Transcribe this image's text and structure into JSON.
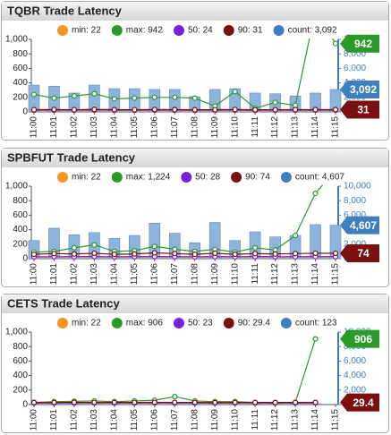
{
  "chart_data": [
    {
      "type": "combo",
      "title": "TQBR Trade Latency",
      "categories": [
        "11:00",
        "11:01",
        "11:02",
        "11:03",
        "11:04",
        "11:05",
        "11:06",
        "11:07",
        "11:08",
        "11:09",
        "11:10",
        "11:11",
        "11:12",
        "11:13",
        "11:14",
        "11:15"
      ],
      "ylim": [
        0,
        1000
      ],
      "yticks": [
        0,
        200,
        400,
        600,
        800,
        {
          "value": 1000,
          "label": "1,000"
        }
      ],
      "y2lim": [
        0,
        10000
      ],
      "y2ticks": [
        0,
        {
          "value": 2000,
          "label": "2,000"
        },
        {
          "value": 4000,
          "label": "4,000"
        },
        {
          "value": 6000,
          "label": "6,000"
        },
        {
          "value": 8000,
          "label": "8,000"
        },
        {
          "value": 10000,
          "label": "10,000"
        }
      ],
      "series": [
        {
          "name": "min: 22",
          "color": "#f7941d",
          "values": [
            20,
            21,
            20,
            22,
            21,
            20,
            22,
            21,
            20,
            21,
            22,
            20,
            21,
            22,
            22,
            22
          ]
        },
        {
          "name": "max: 942",
          "color": "#2a9a2a",
          "values": [
            240,
            190,
            220,
            250,
            180,
            190,
            200,
            200,
            190,
            80,
            280,
            50,
            130,
            90,
            1400,
            942
          ]
        },
        {
          "name": "50: 24",
          "color": "#7a1fe0",
          "values": [
            24,
            25,
            24,
            26,
            24,
            24,
            25,
            24,
            23,
            24,
            25,
            23,
            24,
            24,
            24,
            24
          ]
        },
        {
          "name": "90: 31",
          "color": "#7a0f0f",
          "values": [
            30,
            32,
            30,
            34,
            31,
            30,
            32,
            31,
            29,
            30,
            33,
            29,
            30,
            31,
            31,
            31
          ]
        },
        {
          "name": "count: 3,092",
          "color": "#3f7fbf",
          "bar_color": "#8db4dc",
          "axis": "y2",
          "values": [
            3700,
            3550,
            2600,
            3700,
            3200,
            3200,
            3100,
            3100,
            2100,
            3100,
            3200,
            2600,
            2500,
            2200,
            2600,
            3092
          ]
        }
      ],
      "callouts": [
        {
          "label": "942",
          "value": 942,
          "color": "#2a9a2a",
          "axis": "y"
        },
        {
          "label": "3,092",
          "value": 3092,
          "color": "#3f7fbf",
          "axis": "y2"
        },
        {
          "label": "31",
          "value": 31,
          "color": "#7a0f0f",
          "axis": "y"
        }
      ]
    },
    {
      "type": "combo",
      "title": "SPBFUT Trade Latency",
      "categories": [
        "11:00",
        "11:01",
        "11:02",
        "11:03",
        "11:04",
        "11:05",
        "11:06",
        "11:07",
        "11:08",
        "11:09",
        "11:10",
        "11:11",
        "11:12",
        "11:13",
        "11:14",
        "11:15"
      ],
      "ylim": [
        0,
        1000
      ],
      "yticks": [
        0,
        200,
        400,
        600,
        800,
        {
          "value": 1000,
          "label": "1,000"
        }
      ],
      "y2lim": [
        0,
        10000
      ],
      "y2ticks": [
        0,
        {
          "value": 2000,
          "label": "2,000"
        },
        {
          "value": 4000,
          "label": "4,000"
        },
        {
          "value": 6000,
          "label": "6,000"
        },
        {
          "value": 8000,
          "label": "8,000"
        },
        {
          "value": 10000,
          "label": "10,000"
        }
      ],
      "series": [
        {
          "name": "min: 22",
          "color": "#f7941d",
          "values": [
            20,
            22,
            21,
            22,
            20,
            21,
            22,
            21,
            20,
            22,
            21,
            22,
            21,
            22,
            22,
            22
          ]
        },
        {
          "name": "max: 1,224",
          "color": "#2a9a2a",
          "values": [
            90,
            100,
            150,
            190,
            100,
            110,
            170,
            130,
            100,
            130,
            90,
            150,
            120,
            320,
            900,
            1224
          ]
        },
        {
          "name": "50: 28",
          "color": "#7a1fe0",
          "values": [
            27,
            28,
            28,
            29,
            27,
            28,
            29,
            28,
            27,
            28,
            27,
            29,
            28,
            28,
            28,
            28
          ]
        },
        {
          "name": "90: 74",
          "color": "#7a0f0f",
          "values": [
            60,
            70,
            65,
            75,
            60,
            65,
            80,
            70,
            60,
            75,
            60,
            70,
            65,
            70,
            75,
            74
          ]
        },
        {
          "name": "count: 4,607",
          "color": "#3f7fbf",
          "bar_color": "#8db4dc",
          "axis": "y2",
          "values": [
            2500,
            4200,
            3300,
            3600,
            2800,
            3200,
            4900,
            3500,
            2200,
            5000,
            2500,
            3700,
            3000,
            3200,
            4700,
            4607
          ]
        }
      ],
      "callouts": [
        {
          "label": "4,607",
          "value": 4607,
          "color": "#3f7fbf",
          "axis": "y2"
        },
        {
          "label": "74",
          "value": 74,
          "color": "#7a0f0f",
          "axis": "y"
        }
      ]
    },
    {
      "type": "combo",
      "title": "CETS Trade Latency",
      "categories": [
        "11:00",
        "11:01",
        "11:02",
        "11:03",
        "11:04",
        "11:05",
        "11:06",
        "11:07",
        "11:08",
        "11:09",
        "11:10",
        "11:11",
        "11:12",
        "11:13",
        "11:14",
        "11:15"
      ],
      "ylim": [
        0,
        1000
      ],
      "yticks": [
        0,
        200,
        400,
        600,
        800,
        {
          "value": 1000,
          "label": "1,000"
        }
      ],
      "y2lim": [
        0,
        10000
      ],
      "y2ticks": [
        0,
        {
          "value": 2000,
          "label": "2,000"
        },
        {
          "value": 4000,
          "label": "4,000"
        },
        {
          "value": 6000,
          "label": "6,000"
        },
        {
          "value": 8000,
          "label": "8,000"
        },
        {
          "value": 10000,
          "label": "10,000"
        }
      ],
      "series": [
        {
          "name": "min: 22",
          "color": "#f7941d",
          "values": [
            20,
            21,
            22,
            21,
            22,
            20,
            21,
            22,
            21,
            20,
            22,
            21,
            20,
            21,
            22,
            null
          ]
        },
        {
          "name": "max: 906",
          "color": "#2a9a2a",
          "values": [
            30,
            40,
            45,
            50,
            40,
            50,
            60,
            110,
            50,
            40,
            40,
            30,
            30,
            30,
            906,
            null
          ]
        },
        {
          "name": "50: 23",
          "color": "#7a1fe0",
          "values": [
            22,
            23,
            23,
            24,
            23,
            23,
            24,
            23,
            23,
            22,
            23,
            23,
            22,
            23,
            23,
            null
          ]
        },
        {
          "name": "90: 29.4",
          "color": "#7a0f0f",
          "values": [
            28,
            29,
            30,
            30,
            29,
            30,
            31,
            30,
            29,
            28,
            29,
            29,
            28,
            29,
            29.4,
            null
          ]
        },
        {
          "name": "count: 123",
          "color": "#3f7fbf",
          "bar_color": "#8db4dc",
          "axis": "y2",
          "values": [
            110,
            120,
            115,
            125,
            118,
            120,
            130,
            122,
            115,
            120,
            118,
            121,
            117,
            119,
            123,
            null
          ]
        }
      ],
      "callouts": [
        {
          "label": "906",
          "value": 906,
          "color": "#2a9a2a",
          "axis": "y"
        },
        {
          "label": "29.4",
          "value": 29.4,
          "color": "#7a0f0f",
          "axis": "y"
        }
      ]
    }
  ]
}
